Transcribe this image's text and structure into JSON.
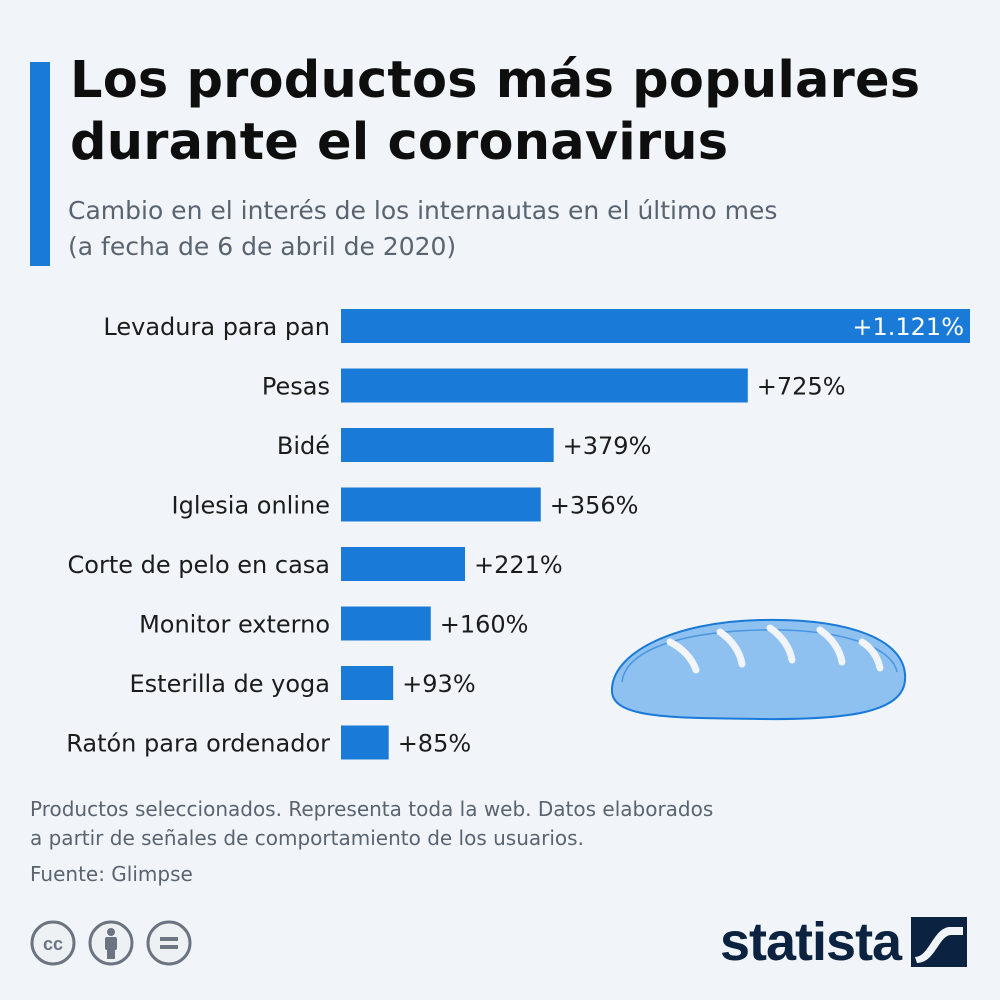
{
  "header": {
    "title_line1": "Los productos más populares",
    "title_line2": "durante el coronavirus",
    "subtitle_line1": "Cambio en el interés de los internautas en el último mes",
    "subtitle_line2": "(a fecha de 6 de abril de 2020)"
  },
  "chart_data": {
    "type": "bar",
    "orientation": "horizontal",
    "title": "Los productos más populares durante el coronavirus",
    "subtitle": "Cambio en el interés de los internautas en el último mes (a fecha de 6 de abril de 2020)",
    "categories": [
      "Levadura para pan",
      "Pesas",
      "Bidé",
      "Iglesia online",
      "Corte de pelo en casa",
      "Monitor externo",
      "Esterilla de yoga",
      "Ratón para ordenador"
    ],
    "values": [
      1121,
      725,
      379,
      356,
      221,
      160,
      93,
      85
    ],
    "value_labels": [
      "+1.121%",
      "+725%",
      "+379%",
      "+356%",
      "+221%",
      "+160%",
      "+93%",
      "+85%"
    ],
    "unit": "%",
    "xlim": [
      0,
      1121
    ],
    "grid": false,
    "bar_color": "#1a7ad7"
  },
  "footer": {
    "note_line1": "Productos seleccionados. Representa toda la web. Datos elaborados",
    "note_line2": "a partir de señales de comportamiento de los usuarios.",
    "source": "Fuente: Glimpse",
    "license_icons": [
      "cc-icon",
      "attribution-icon",
      "no-derivatives-icon"
    ],
    "brand": "statista"
  },
  "colors": {
    "accent": "#1a7ad7",
    "background": "#f1f5f9",
    "bread_fill": "#8ec0f0",
    "bread_stroke": "#1a7ad7"
  }
}
